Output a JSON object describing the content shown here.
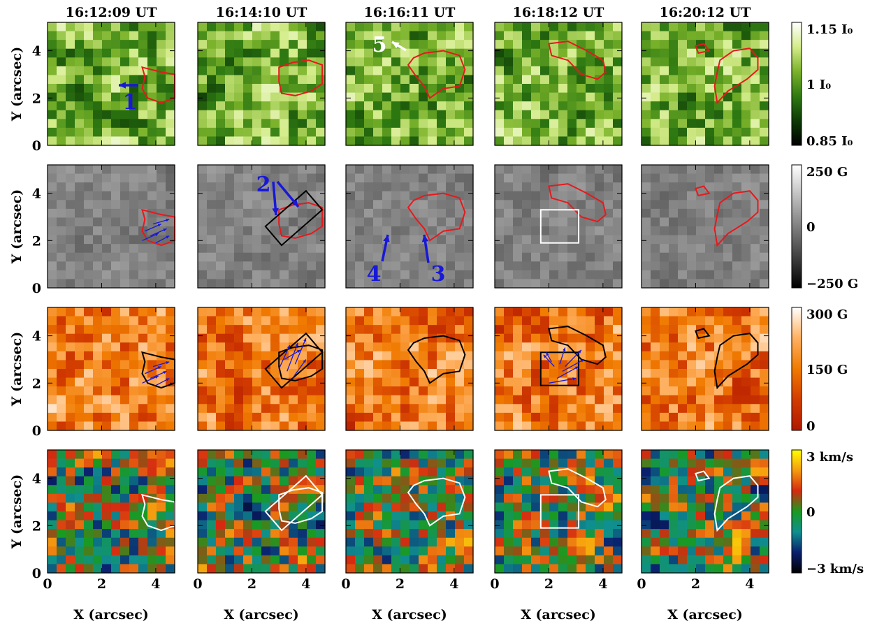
{
  "figure": {
    "column_titles": [
      "16:12:09 UT",
      "16:14:10 UT",
      "16:16:11 UT",
      "16:18:12 UT",
      "16:20:12 UT"
    ],
    "y_label": "Y (arcsec)",
    "x_label": "X (arcsec)",
    "x_ticks": [
      "0",
      "2",
      "4"
    ],
    "y_ticks": [
      "0",
      "2",
      "4"
    ],
    "rows": [
      {
        "name": "intensity",
        "colormap": [
          "#000000",
          "#0d3a06",
          "#2f7a12",
          "#7ab22a",
          "#d4ec8a",
          "#ffffff"
        ],
        "colorbar_labels": {
          "top": "1.15 I₀",
          "middle": "1 I₀",
          "bottom": "0.85 I₀"
        },
        "contour_color": "#e8181c"
      },
      {
        "name": "longitudinal-field",
        "colormap": [
          "#000000",
          "#808080",
          "#ffffff"
        ],
        "colorbar_labels": {
          "top": "250 G",
          "middle": "0",
          "bottom": "−250 G"
        },
        "contour_color": "#e8181c"
      },
      {
        "name": "transverse-field",
        "colormap": [
          "#b01800",
          "#d23c00",
          "#f07a00",
          "#ffb060",
          "#ffffff"
        ],
        "colorbar_labels": {
          "top": "300 G",
          "middle": "150 G",
          "bottom": "0"
        },
        "contour_color": "#000000"
      },
      {
        "name": "doppler-velocity",
        "colormap": [
          "#000000",
          "#0a1f6e",
          "#0f8f8f",
          "#1a9a20",
          "#d42a10",
          "#f59a10",
          "#ffff00"
        ],
        "colorbar_labels": {
          "top": "3 km/s",
          "middle": "0",
          "bottom": "−3 km/s"
        },
        "contour_color": "#ffffff"
      }
    ],
    "annotations": [
      {
        "label": "1",
        "color": "#1818d8"
      },
      {
        "label": "2",
        "color": "#1818d8"
      },
      {
        "label": "3",
        "color": "#1818d8"
      },
      {
        "label": "4",
        "color": "#1818d8"
      },
      {
        "label": "5",
        "color": "#ffffff"
      }
    ],
    "vector_color": "#1818d8"
  }
}
